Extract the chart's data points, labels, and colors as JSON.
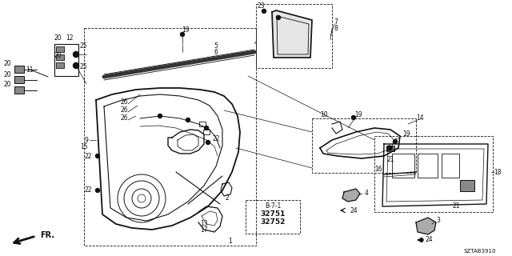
{
  "bg_color": "#ffffff",
  "diagram_id": "SZTAB3910",
  "fig_width": 6.4,
  "fig_height": 3.2,
  "dpi": 100
}
